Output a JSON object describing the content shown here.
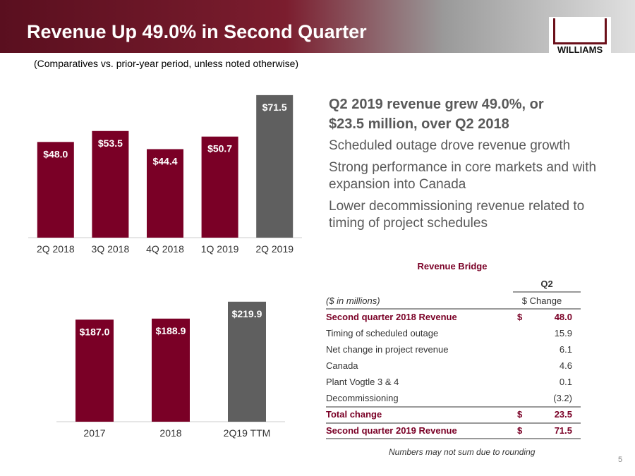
{
  "header": {
    "title": "Revenue Up 49.0% in Second Quarter",
    "subtitle": "(Comparatives vs. prior-year period, unless noted otherwise)",
    "logo": "WILLIAMS"
  },
  "chart_data": [
    {
      "type": "bar",
      "categories": [
        "2Q 2018",
        "3Q 2018",
        "4Q 2018",
        "1Q 2019",
        "2Q 2019"
      ],
      "values": [
        48.0,
        53.5,
        44.4,
        50.7,
        71.5
      ],
      "value_labels": [
        "$48.0",
        "$53.5",
        "$44.4",
        "$50.7",
        "$71.5"
      ],
      "colors": [
        "#7a0026",
        "#7a0026",
        "#7a0026",
        "#7a0026",
        "#5f5f5f"
      ],
      "ylim": [
        0,
        75
      ]
    },
    {
      "type": "bar",
      "categories": [
        "2017",
        "2018",
        "2Q19 TTM"
      ],
      "values": [
        187.0,
        188.9,
        219.9
      ],
      "value_labels": [
        "$187.0",
        "$188.9",
        "$219.9"
      ],
      "colors": [
        "#7a0026",
        "#7a0026",
        "#5f5f5f"
      ],
      "ylim": [
        0,
        230
      ]
    }
  ],
  "highlight": [
    "Q2 2019 revenue grew 49.0%, or",
    "$23.5 million, over Q2 2018"
  ],
  "bullets": [
    "Scheduled outage drove revenue growth",
    "Strong performance in core markets and with expansion into Canada",
    "Lower decommissioning revenue related to timing of project schedules"
  ],
  "table": {
    "title": "Revenue Bridge",
    "period": "Q2",
    "units": "($ in millions)",
    "column": "$ Change",
    "rows": [
      [
        "Second quarter 2018 Revenue",
        "$",
        "48.0"
      ],
      [
        "Timing of scheduled outage",
        "",
        "15.9"
      ],
      [
        "Net change in project revenue",
        "",
        "6.1"
      ],
      [
        "Canada",
        "",
        "4.6"
      ],
      [
        "Plant Vogtle 3 & 4",
        "",
        "0.1"
      ],
      [
        "Decommissioning",
        "",
        "(3.2)"
      ],
      [
        "Total change",
        "$",
        "23.5"
      ],
      [
        "Second quarter 2019 Revenue",
        "$",
        "71.5"
      ]
    ]
  },
  "footnote": "Numbers may not sum due to rounding",
  "page_number": "5"
}
